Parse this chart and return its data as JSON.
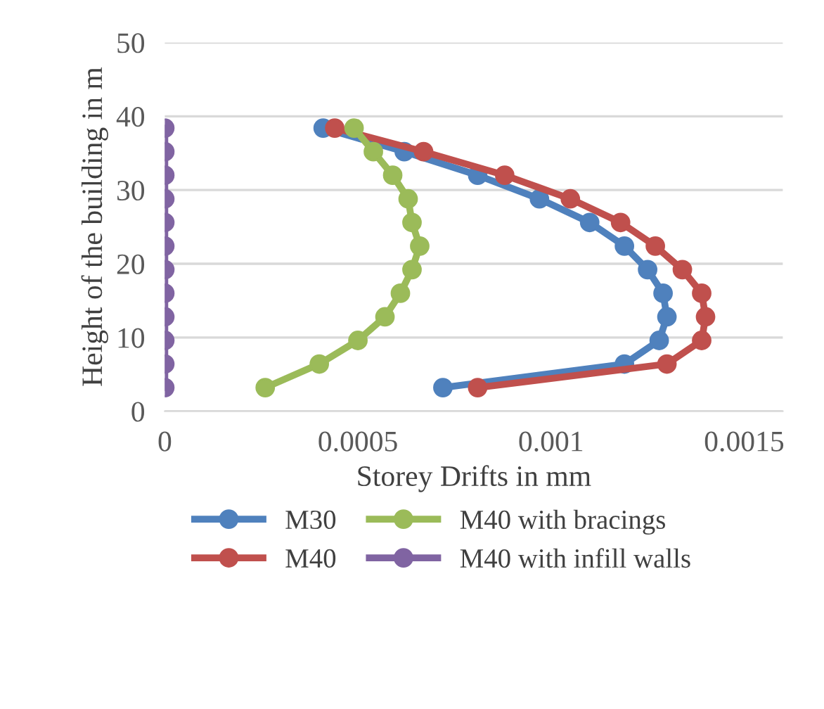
{
  "chart_data": {
    "type": "line",
    "xlabel": "Storey Drifts in mm",
    "ylabel": "Height of the building in m",
    "xlim": [
      0,
      0.0016
    ],
    "xticks": [
      0,
      0.0005,
      0.001,
      0.0015
    ],
    "ylim": [
      0,
      50
    ],
    "yticks": [
      0,
      10,
      20,
      30,
      40,
      50
    ],
    "grid": "y",
    "legend": "bottom",
    "marker": "circle",
    "line_style": "solid",
    "series": [
      {
        "name": "M30",
        "color": "#4f81bd",
        "x": [
          0.00072,
          0.00119,
          0.00128,
          0.0013,
          0.00129,
          0.00125,
          0.00119,
          0.0011,
          0.00097,
          0.00081,
          0.00062,
          0.00041
        ],
        "values": [
          3.2,
          6.4,
          9.6,
          12.8,
          16,
          19.2,
          22.4,
          25.6,
          28.8,
          32,
          35.2,
          38.4
        ]
      },
      {
        "name": "M40",
        "color": "#c0504d",
        "x": [
          0.00081,
          0.0013,
          0.00139,
          0.0014,
          0.00139,
          0.00134,
          0.00127,
          0.00118,
          0.00105,
          0.00088,
          0.00067,
          0.00044
        ],
        "values": [
          3.2,
          6.4,
          9.6,
          12.8,
          16,
          19.2,
          22.4,
          25.6,
          28.8,
          32,
          35.2,
          38.4
        ]
      },
      {
        "name": "M40 with bracings",
        "color": "#9bbb59",
        "x": [
          0.00026,
          0.0004,
          0.0005,
          0.00057,
          0.00061,
          0.00064,
          0.00066,
          0.00064,
          0.00063,
          0.00059,
          0.00054,
          0.00049
        ],
        "values": [
          3.2,
          6.4,
          9.6,
          12.8,
          16,
          19.2,
          22.4,
          25.6,
          28.8,
          32,
          35.2,
          38.4
        ]
      },
      {
        "name": "M40 with infill walls",
        "color": "#8064a2",
        "x": [
          0,
          0,
          0,
          0,
          0,
          0,
          0,
          0,
          0,
          0,
          0,
          0
        ],
        "values": [
          3.2,
          6.4,
          9.6,
          12.8,
          16,
          19.2,
          22.4,
          25.6,
          28.8,
          32,
          35.2,
          38.4
        ]
      }
    ]
  }
}
